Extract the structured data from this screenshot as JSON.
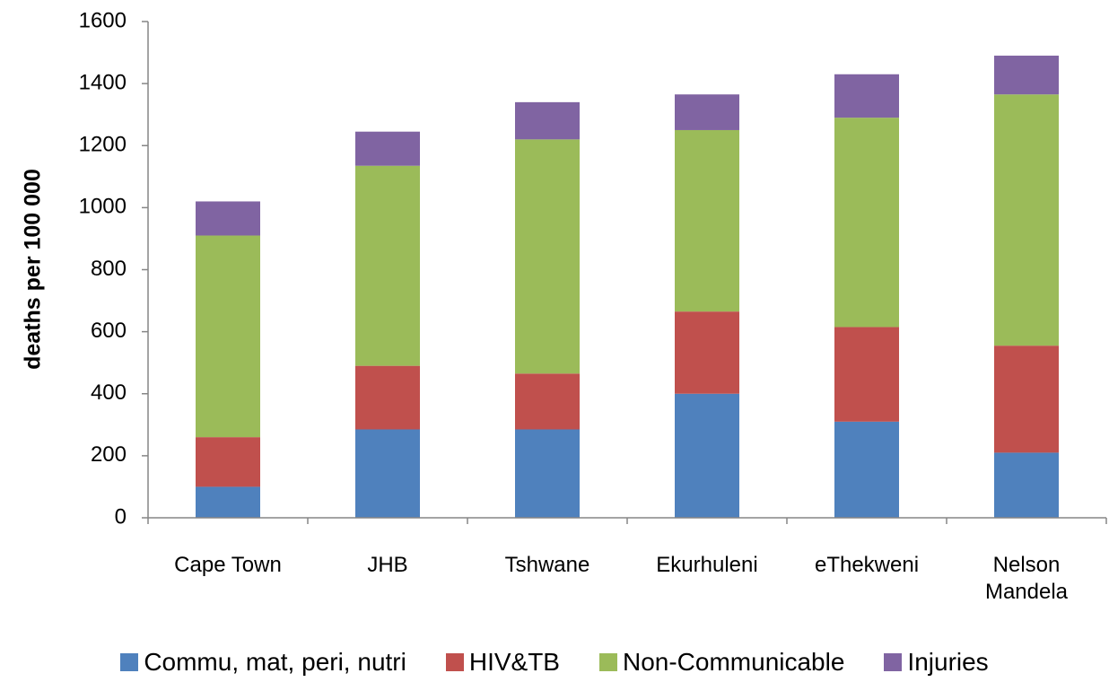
{
  "chart_data": {
    "type": "stacked_bar",
    "y_label": "deaths per 100 000",
    "categories": [
      "Cape Town",
      "JHB",
      "Tshwane",
      "Ekurhuleni",
      "eThekweni",
      "Nelson Mandela"
    ],
    "series": [
      {
        "name": "Commu, mat, peri, nutri",
        "color": "#4f81bd",
        "values": [
          100,
          285,
          285,
          400,
          310,
          210
        ]
      },
      {
        "name": "HIV&TB",
        "color": "#c0504d",
        "values": [
          160,
          205,
          180,
          265,
          305,
          345
        ]
      },
      {
        "name": "Non-Communicable",
        "color": "#9bbb59",
        "values": [
          650,
          645,
          755,
          585,
          675,
          810
        ]
      },
      {
        "name": "Injuries",
        "color": "#8064a2",
        "values": [
          110,
          110,
          120,
          115,
          140,
          125
        ]
      }
    ],
    "ylim": [
      0,
      1600
    ],
    "yticks": [
      0,
      200,
      400,
      600,
      800,
      1000,
      1200,
      1400,
      1600
    ],
    "legend": "bottom"
  }
}
